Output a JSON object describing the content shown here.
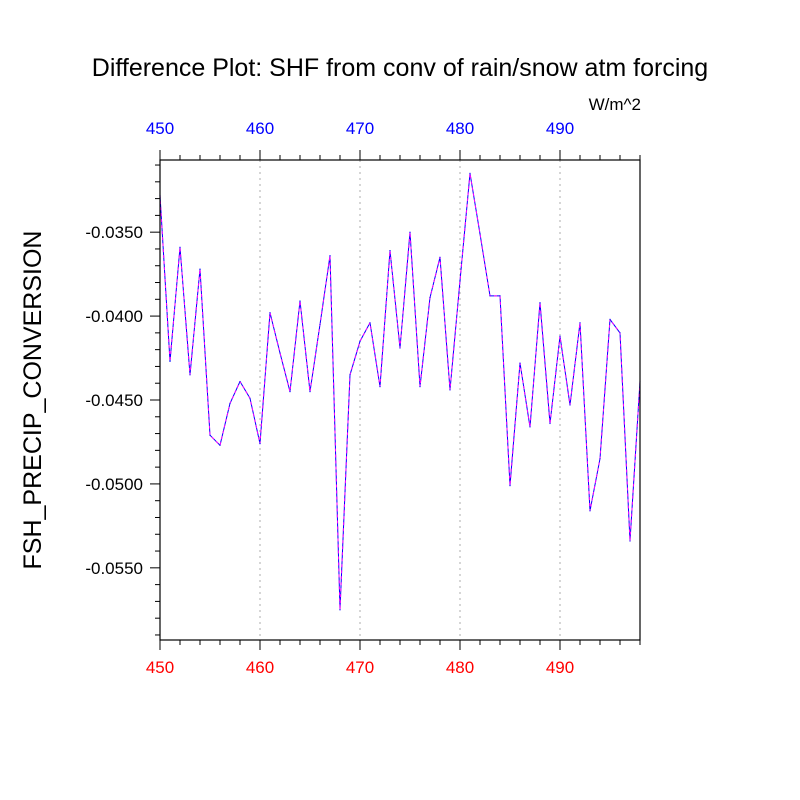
{
  "chart_data": {
    "type": "line",
    "title": "Difference Plot: SHF from conv of rain/snow atm forcing",
    "units_label": "W/m^2",
    "ylabel": "FSH_PRECIP_CONVERSION",
    "xlabel": "",
    "xlim": [
      450,
      498
    ],
    "ylim": [
      -0.0593,
      -0.0307
    ],
    "x_ticks": [
      450,
      460,
      470,
      480,
      490
    ],
    "x_tick_labels": [
      "450",
      "460",
      "470",
      "480",
      "490"
    ],
    "y_ticks": [
      -0.035,
      -0.04,
      -0.045,
      -0.05,
      -0.055
    ],
    "y_tick_labels": [
      "-0.0350",
      "-0.0400",
      "-0.0450",
      "-0.0500",
      "-0.0550"
    ],
    "grid": "vertical dotted at major x ticks",
    "colors": {
      "top_axis_labels": "#0000ff",
      "bottom_axis_labels": "#ff0000",
      "line_primary": "#0000ff",
      "line_overlay": "#ff00ff",
      "grid": "#bbbbbb"
    },
    "series": [
      {
        "x": [
          450,
          451,
          452,
          453,
          454,
          455,
          456,
          457,
          458,
          459,
          460,
          461,
          462,
          463,
          464,
          465,
          466,
          467,
          468,
          469,
          470,
          471,
          472,
          473,
          474,
          475,
          476,
          477,
          478,
          479,
          480,
          481,
          482,
          483,
          484,
          485,
          486,
          487,
          488,
          489,
          490,
          491,
          492,
          493,
          494,
          495,
          496,
          497,
          498
        ],
        "values": [
          -0.0328,
          -0.0427,
          -0.0359,
          -0.0435,
          -0.0372,
          -0.0471,
          -0.0477,
          -0.0452,
          -0.0439,
          -0.0449,
          -0.0476,
          -0.0398,
          -0.0422,
          -0.0445,
          -0.0391,
          -0.0445,
          -0.0405,
          -0.0364,
          -0.0575,
          -0.0435,
          -0.0415,
          -0.0404,
          -0.0442,
          -0.0361,
          -0.0419,
          -0.035,
          -0.0442,
          -0.0389,
          -0.0365,
          -0.0444,
          -0.0379,
          -0.0315,
          -0.0351,
          -0.0388,
          -0.0388,
          -0.0501,
          -0.0428,
          -0.0466,
          -0.0392,
          -0.0464,
          -0.0412,
          -0.0453,
          -0.0404,
          -0.0516,
          -0.0485,
          -0.0402,
          -0.041,
          -0.0534,
          -0.0439
        ]
      }
    ]
  }
}
